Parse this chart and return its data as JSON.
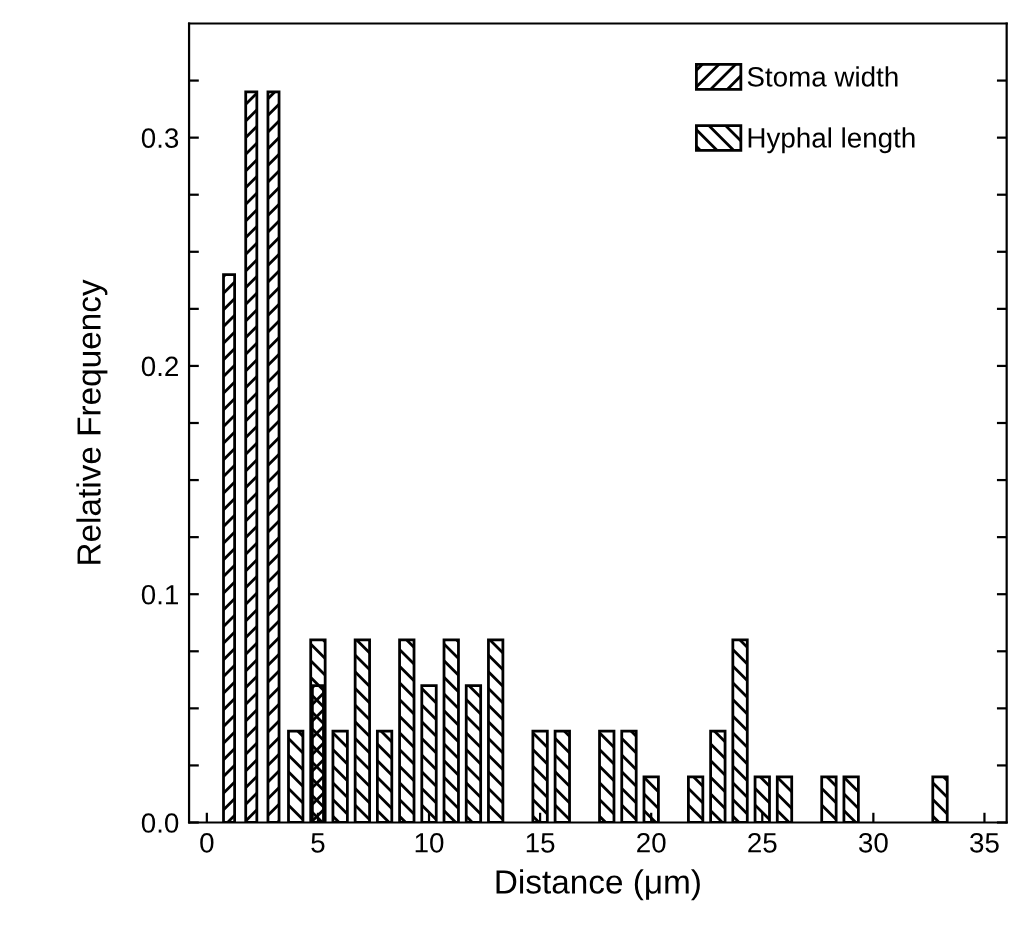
{
  "chart_data": {
    "type": "bar",
    "xlabel": "Distance (μm)",
    "ylabel": "Relative Frequency",
    "series": [
      {
        "name": "Stoma width",
        "color": "#000000",
        "x": [
          1,
          2,
          3,
          5
        ],
        "values": [
          0.24,
          0.32,
          0.32,
          0.06
        ]
      },
      {
        "name": "Hyphal length",
        "color": "#000000",
        "x": [
          4,
          5,
          6,
          7,
          8,
          9,
          10,
          11,
          12,
          13,
          15,
          16,
          18,
          19,
          20,
          22,
          23,
          24,
          25,
          26,
          28,
          29,
          33
        ],
        "values": [
          0.04,
          0.08,
          0.04,
          0.08,
          0.04,
          0.08,
          0.06,
          0.08,
          0.06,
          0.08,
          0.04,
          0.04,
          0.04,
          0.04,
          0.02,
          0.02,
          0.04,
          0.08,
          0.02,
          0.02,
          0.02,
          0.02,
          0.02
        ]
      }
    ],
    "xlim": [
      -0.8,
      36
    ],
    "xticks": [
      0,
      5,
      10,
      15,
      20,
      25,
      30,
      35
    ],
    "ylim": [
      0,
      0.35
    ],
    "yticks": [
      {
        "value": 0,
        "label": "0.0"
      },
      {
        "value": 0.025,
        "label": null
      },
      {
        "value": 0.05,
        "label": null
      },
      {
        "value": 0.075,
        "label": null
      },
      0.1,
      {
        "value": 0.125,
        "label": null
      },
      {
        "value": 0.15,
        "label": null
      },
      {
        "value": 0.175,
        "label": null
      },
      0.2,
      {
        "value": 0.225,
        "label": null
      },
      {
        "value": 0.25,
        "label": null
      },
      {
        "value": 0.275,
        "label": null
      },
      0.3,
      {
        "value": 0.325,
        "label": null
      }
    ],
    "legend": "top right",
    "grid": false
  }
}
